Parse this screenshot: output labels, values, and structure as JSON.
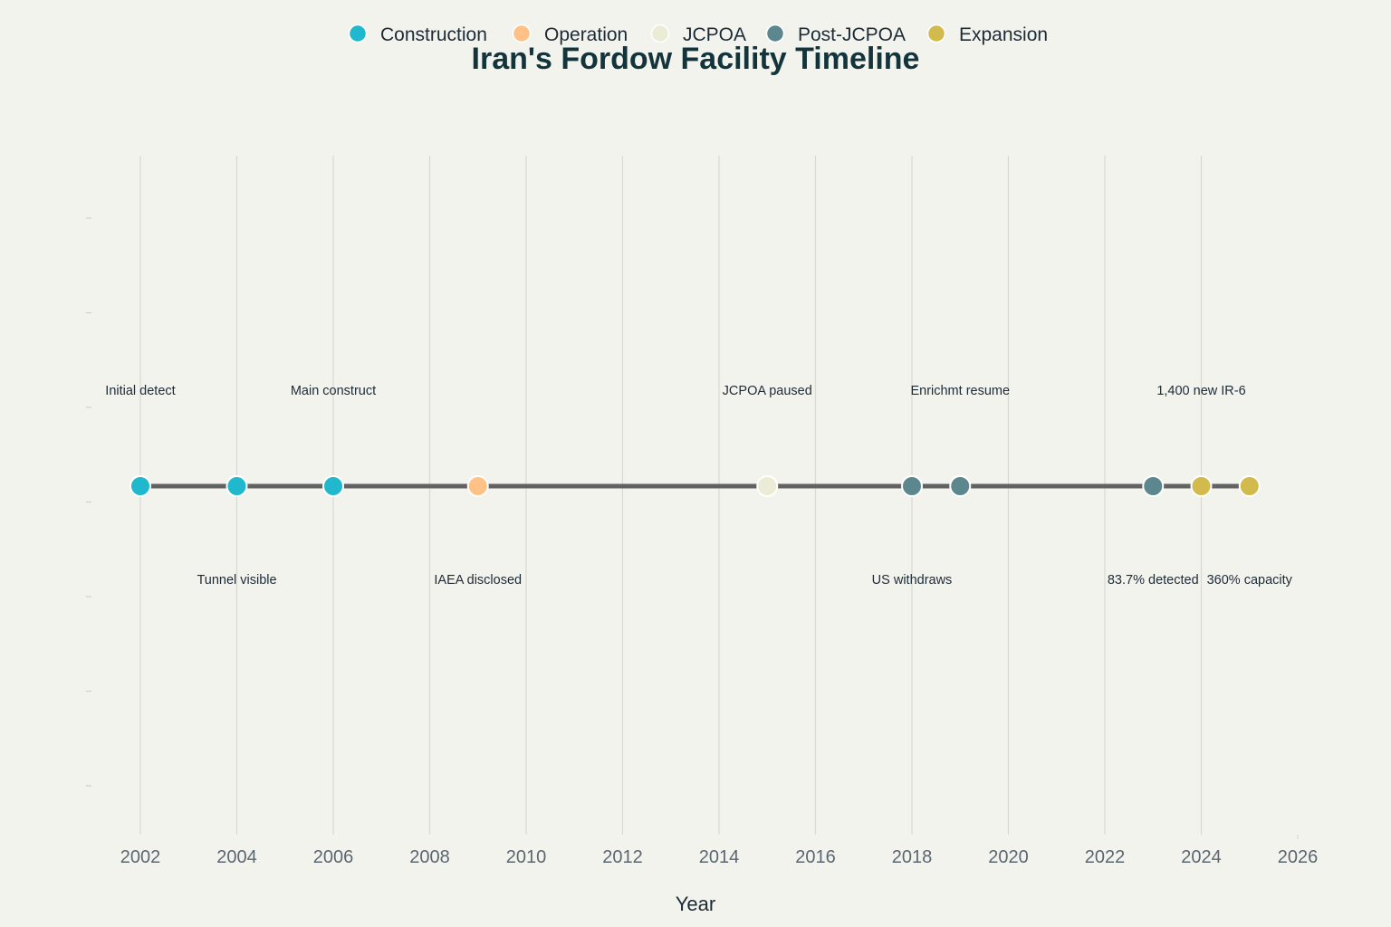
{
  "chart_data": {
    "type": "scatter",
    "title": "Iran's Fordow Facility Timeline",
    "xlabel": "Year",
    "ylabel": "",
    "xlim": [
      2001,
      2026
    ],
    "x_ticks": [
      2002,
      2004,
      2006,
      2008,
      2010,
      2012,
      2014,
      2016,
      2018,
      2020,
      2022,
      2024,
      2026
    ],
    "ylim": [
      -1,
      1
    ],
    "grid": "vertical",
    "legend_position": "top-center",
    "colors": {
      "Construction": "#1fb8cd",
      "Operation": "#ffc185",
      "JCPOA": "#ecebd5",
      "Post-JCPOA": "#5d878f",
      "Expansion": "#d2ba4c",
      "timeline_line": "#626262",
      "grid": "#d9d9d4"
    },
    "series": [
      {
        "name": "Construction",
        "x": [
          2002,
          2004,
          2006
        ]
      },
      {
        "name": "Operation",
        "x": [
          2009
        ]
      },
      {
        "name": "JCPOA",
        "x": [
          2015
        ]
      },
      {
        "name": "Post-JCPOA",
        "x": [
          2018,
          2019,
          2023
        ]
      },
      {
        "name": "Expansion",
        "x": [
          2024,
          2025
        ]
      }
    ],
    "events": [
      {
        "year": 2002,
        "label": "Initial detect",
        "phase": "Construction",
        "position": "above"
      },
      {
        "year": 2004,
        "label": "Tunnel visible",
        "phase": "Construction",
        "position": "below"
      },
      {
        "year": 2006,
        "label": "Main construct",
        "phase": "Construction",
        "position": "above"
      },
      {
        "year": 2009,
        "label": "IAEA disclosed",
        "phase": "Operation",
        "position": "below"
      },
      {
        "year": 2015,
        "label": "JCPOA paused",
        "phase": "JCPOA",
        "position": "above"
      },
      {
        "year": 2018,
        "label": "US withdraws",
        "phase": "Post-JCPOA",
        "position": "below"
      },
      {
        "year": 2019,
        "label": "Enrichmt resume",
        "phase": "Post-JCPOA",
        "position": "above"
      },
      {
        "year": 2023,
        "label": "83.7% detected",
        "phase": "Post-JCPOA",
        "position": "below"
      },
      {
        "year": 2024,
        "label": "1,400 new IR-6",
        "phase": "Expansion",
        "position": "above"
      },
      {
        "year": 2025,
        "label": "360% capacity",
        "phase": "Expansion",
        "position": "below"
      }
    ]
  }
}
